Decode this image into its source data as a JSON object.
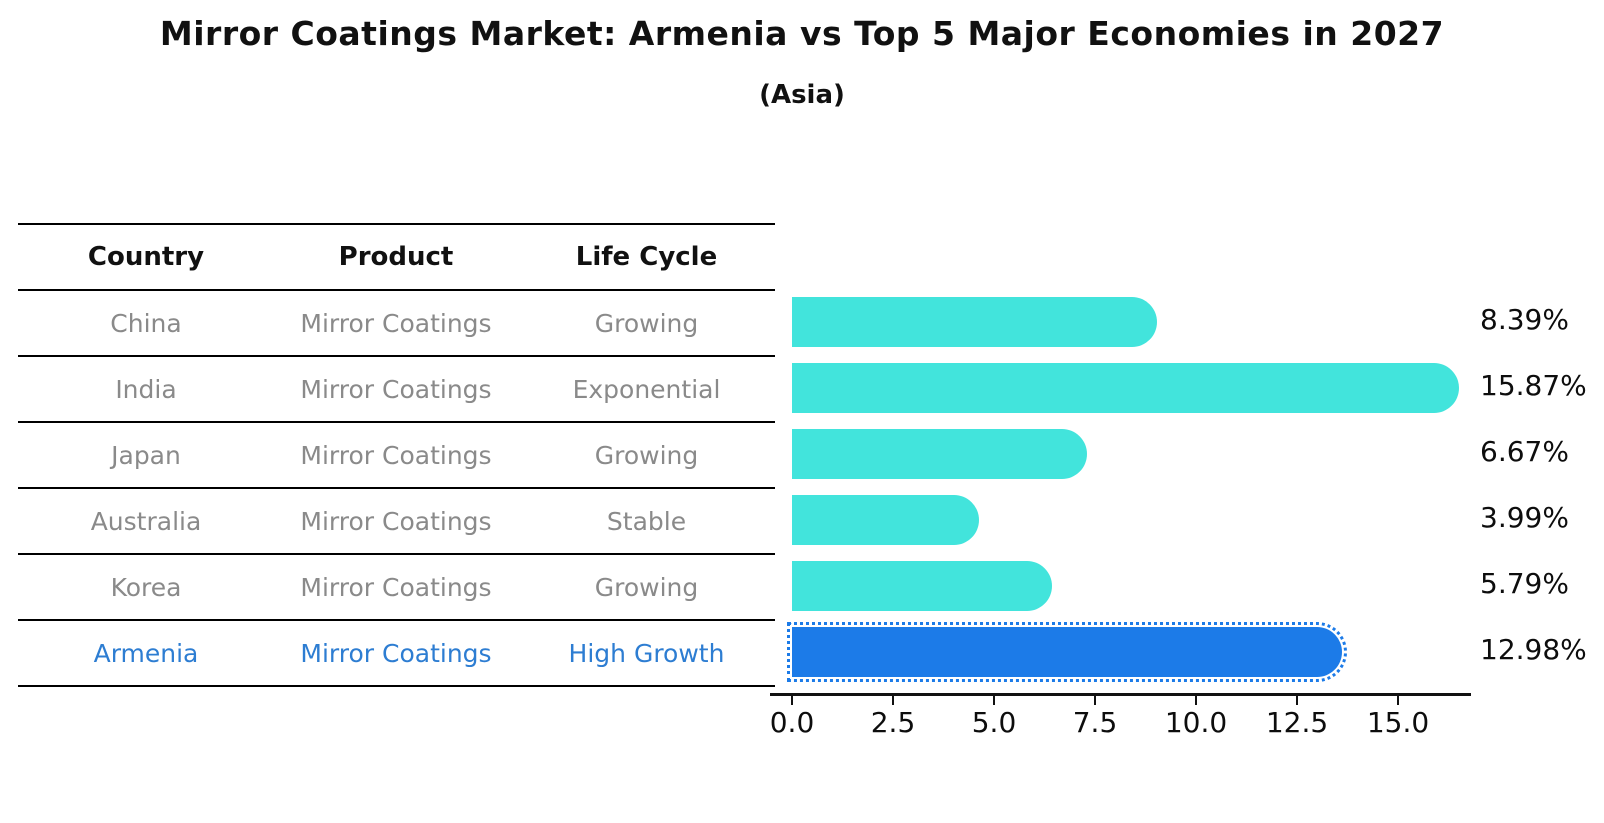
{
  "title": "Mirror Coatings Market: Armenia vs Top 5 Major Economies in 2027",
  "subtitle": "(Asia)",
  "table": {
    "headers": [
      "Country",
      "Product",
      "Life Cycle"
    ],
    "rows": [
      {
        "country": "China",
        "product": "Mirror Coatings",
        "life_cycle": "Growing",
        "highlight": false
      },
      {
        "country": "India",
        "product": "Mirror Coatings",
        "life_cycle": "Exponential",
        "highlight": false
      },
      {
        "country": "Japan",
        "product": "Mirror Coatings",
        "life_cycle": "Growing",
        "highlight": false
      },
      {
        "country": "Australia",
        "product": "Mirror Coatings",
        "life_cycle": "Stable",
        "highlight": false
      },
      {
        "country": "Korea",
        "product": "Mirror Coatings",
        "life_cycle": "Growing",
        "highlight": false
      },
      {
        "country": "Armenia",
        "product": "Mirror Coatings",
        "life_cycle": "High Growth",
        "highlight": true
      }
    ]
  },
  "chart_data": {
    "type": "bar",
    "orientation": "horizontal",
    "title": "Mirror Coatings Market: Armenia vs Top 5 Major Economies in 2027",
    "subtitle": "(Asia)",
    "categories": [
      "China",
      "India",
      "Japan",
      "Australia",
      "Korea",
      "Armenia"
    ],
    "values": [
      8.39,
      15.87,
      6.67,
      3.99,
      5.79,
      12.98
    ],
    "value_labels": [
      "8.39%",
      "15.87%",
      "6.67%",
      "3.99%",
      "5.79%",
      "12.98%"
    ],
    "unit": "%",
    "highlight_index": 5,
    "x_ticks": [
      0.0,
      2.5,
      5.0,
      7.5,
      10.0,
      12.5,
      15.0
    ],
    "x_tick_labels": [
      "0.0",
      "2.5",
      "5.0",
      "7.5",
      "10.0",
      "12.5",
      "15.0"
    ],
    "xlim": [
      0,
      16.8
    ],
    "xlabel": "",
    "ylabel": "",
    "grid": false,
    "legend": null,
    "colors": {
      "default_bar": "#42e4dc",
      "highlight_bar": "#1c7be8",
      "highlight_text": "#2d7dd2",
      "table_text": "#8a8a8a",
      "axis": "#111111"
    }
  }
}
